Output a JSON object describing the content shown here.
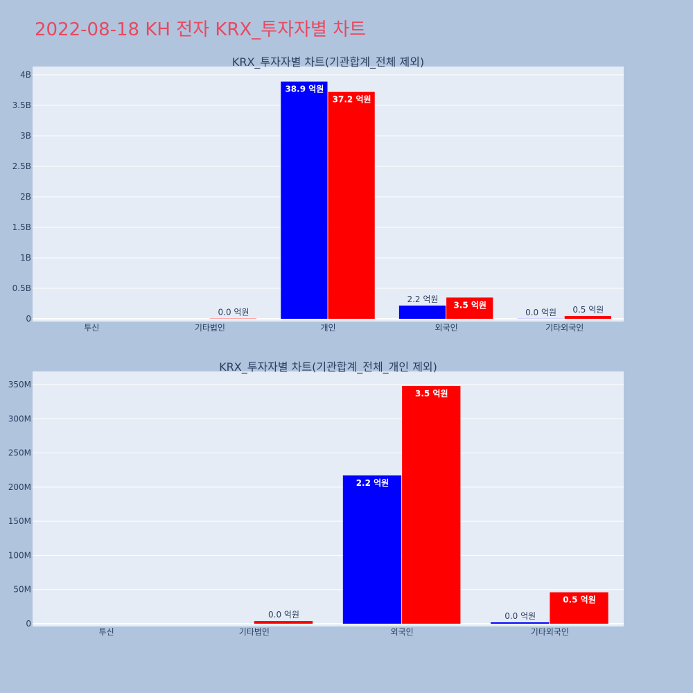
{
  "page": {
    "title": "2022-08-18 KH 전자 KRX_투자자별 차트",
    "background": "#b0c4de",
    "plot_background": "#e5ecf6",
    "title_color": "#e8495f"
  },
  "chart_data": [
    {
      "type": "bar",
      "title": "KRX_투자자별 차트(기관합계_전체 제외)",
      "categories": [
        "투신",
        "기타법인",
        "개인",
        "외국인",
        "기타외국인"
      ],
      "series": [
        {
          "color": "#0000ff",
          "values": [
            0,
            0,
            3890000000,
            217000000,
            2000000
          ]
        },
        {
          "color": "#ff0000",
          "values": [
            0,
            4000000,
            3720000000,
            348000000,
            46000000
          ]
        }
      ],
      "bar_labels": [
        [
          "",
          "",
          "38.9 억원",
          "2.2 억원",
          "0.0 억원"
        ],
        [
          "",
          "0.0 억원",
          "37.2 억원",
          "3.5 억원",
          "0.5 억원"
        ]
      ],
      "ylim": [
        0,
        4000000000
      ],
      "yticks": [
        0,
        500000000,
        1000000000,
        1500000000,
        2000000000,
        2500000000,
        3000000000,
        3500000000,
        4000000000
      ],
      "ytick_labels": [
        "0",
        "0.5B",
        "1B",
        "1.5B",
        "2B",
        "2.5B",
        "3B",
        "3.5B",
        "4B"
      ],
      "grid": true
    },
    {
      "type": "bar",
      "title": "KRX_투자자별 차트(기관합계_전체_개인 제외)",
      "categories": [
        "투신",
        "기타법인",
        "외국인",
        "기타외국인"
      ],
      "series": [
        {
          "color": "#0000ff",
          "values": [
            0,
            0,
            217000000,
            2000000
          ]
        },
        {
          "color": "#ff0000",
          "values": [
            0,
            4000000,
            348000000,
            46000000
          ]
        }
      ],
      "bar_labels": [
        [
          "",
          "",
          "2.2 억원",
          "0.0 억원"
        ],
        [
          "",
          "0.0 억원",
          "3.5 억원",
          "0.5 억원"
        ]
      ],
      "ylim": [
        0,
        350000000
      ],
      "yticks": [
        0,
        50000000,
        100000000,
        150000000,
        200000000,
        250000000,
        300000000,
        350000000
      ],
      "ytick_labels": [
        "0",
        "50M",
        "100M",
        "150M",
        "200M",
        "250M",
        "300M",
        "350M"
      ],
      "grid": true
    }
  ]
}
